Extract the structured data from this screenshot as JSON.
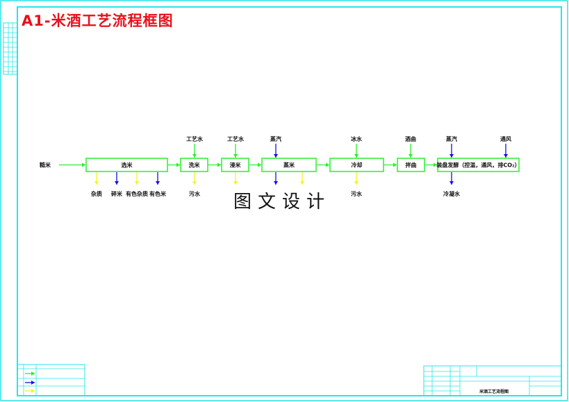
{
  "title": "A1-米酒工艺流程框图",
  "watermark": "图文设计",
  "colors": {
    "frame": "#27e6e6",
    "title": "#e8101a",
    "main_flow": "#2aee2a",
    "input_green": "#2aee2a",
    "blue": "#1010e0",
    "yellow": "#f5f51a"
  },
  "raw_material": "糙米",
  "steps": [
    {
      "label": "选米",
      "inputs": [],
      "outputs": [
        {
          "label": "杂质",
          "color": "yellow"
        },
        {
          "label": "碎米",
          "color": "blue"
        },
        {
          "label": "有色杂质",
          "color": "yellow"
        },
        {
          "label": "有色米",
          "color": "blue"
        }
      ]
    },
    {
      "label": "洗米",
      "inputs": [
        {
          "label": "工艺水",
          "color": "green"
        }
      ],
      "outputs": [
        {
          "label": "污水",
          "color": "yellow"
        }
      ]
    },
    {
      "label": "浸米",
      "inputs": [
        {
          "label": "工艺水",
          "color": "green"
        }
      ],
      "outputs": [
        {
          "label": "",
          "color": "yellow"
        }
      ]
    },
    {
      "label": "蒸米",
      "inputs": [
        {
          "label": "蒸汽",
          "color": "blue"
        }
      ],
      "outputs": [
        {
          "label": "",
          "color": "blue"
        },
        {
          "label": "",
          "color": "yellow"
        }
      ]
    },
    {
      "label": "冷却",
      "inputs": [
        {
          "label": "冰水",
          "color": "green"
        }
      ],
      "outputs": [
        {
          "label": "污水",
          "color": "yellow"
        }
      ]
    },
    {
      "label": "拌曲",
      "inputs": [
        {
          "label": "酒曲",
          "color": "green"
        }
      ],
      "outputs": []
    },
    {
      "label": "装盘发酵（控温，通风，排CO₂）",
      "inputs": [
        {
          "label": "蒸汽",
          "color": "blue"
        },
        {
          "label": "通风",
          "color": "blue"
        }
      ],
      "outputs": [
        {
          "label": "冷凝水",
          "color": "blue"
        }
      ]
    }
  ],
  "title_block": {
    "drawing_name": "米酒工艺流程图"
  }
}
